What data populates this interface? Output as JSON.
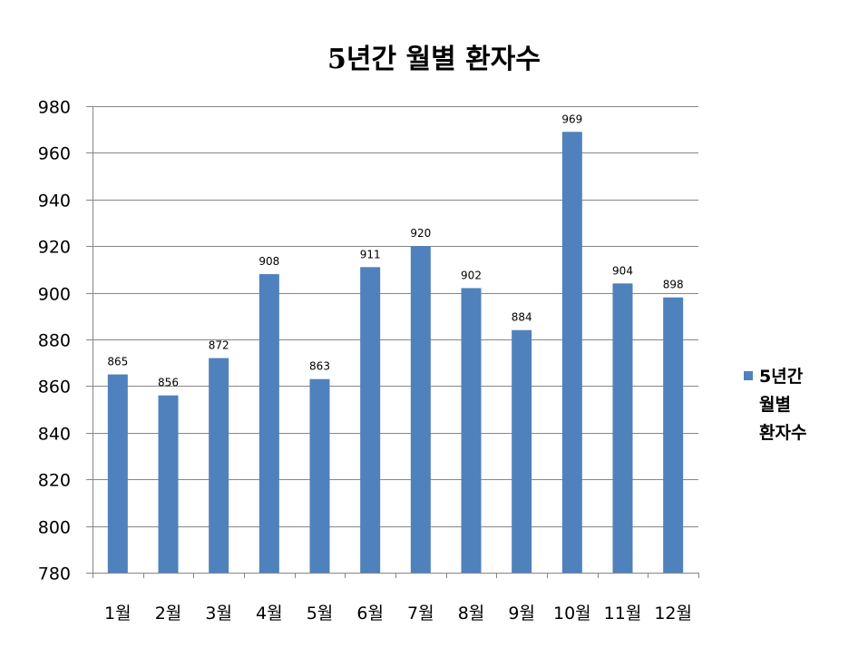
{
  "chart_data": {
    "type": "bar",
    "title": "5년간 월별 환자수",
    "xlabel": "",
    "ylabel": "",
    "categories": [
      "1월",
      "2월",
      "3월",
      "4월",
      "5월",
      "6월",
      "7월",
      "8월",
      "9월",
      "10월",
      "11월",
      "12월"
    ],
    "series": [
      {
        "name": "5년간 월별 환자수",
        "values": [
          865,
          856,
          872,
          908,
          863,
          911,
          920,
          902,
          884,
          969,
          904,
          898
        ],
        "color": "#4F81BD"
      }
    ],
    "ylim": [
      780,
      980
    ],
    "yticks": [
      780,
      800,
      820,
      840,
      860,
      880,
      900,
      920,
      940,
      960,
      980
    ],
    "grid": true,
    "data_labels": true,
    "legend_position": "right"
  },
  "legend": {
    "label": "5년간 월별 환자수",
    "lines": [
      "5년간",
      "월별",
      "환자수"
    ]
  }
}
